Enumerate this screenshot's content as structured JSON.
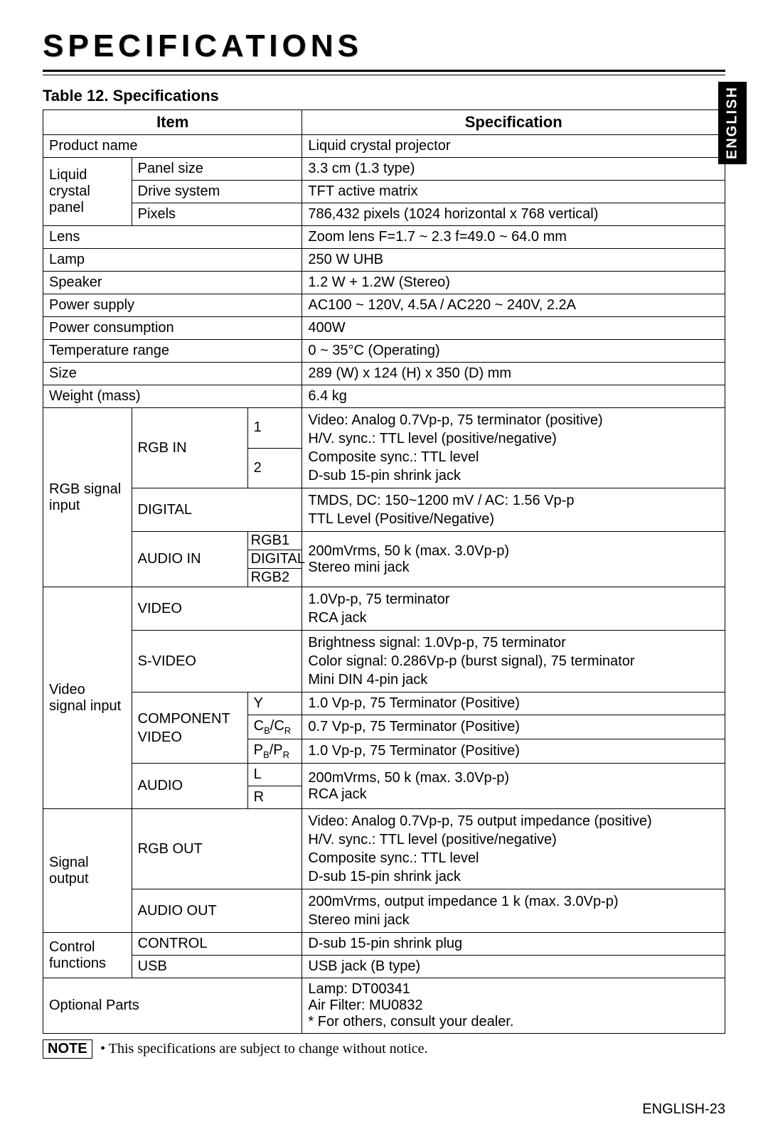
{
  "heading": "SPECIFICATIONS",
  "side_tab": "ENGLISH",
  "table_caption": "Table 12. Specifications",
  "header": {
    "item": "Item",
    "spec": "Specification"
  },
  "r": {
    "product_name": {
      "item": "Product name",
      "spec": "Liquid crystal projector"
    },
    "lcp": {
      "group": "Liquid crystal panel",
      "panel_size": {
        "item": "Panel size",
        "spec": "3.3 cm (1.3 type)"
      },
      "drive_system": {
        "item": "Drive system",
        "spec": "TFT active matrix"
      },
      "pixels": {
        "item": "Pixels",
        "spec": "786,432 pixels (1024 horizontal x 768 vertical)"
      }
    },
    "lens": {
      "item": "Lens",
      "spec": "Zoom lens F=1.7 ~ 2.3  f=49.0 ~ 64.0 mm"
    },
    "lamp": {
      "item": "Lamp",
      "spec": "250 W UHB"
    },
    "speaker": {
      "item": "Speaker",
      "spec": "1.2 W + 1.2W (Stereo)"
    },
    "power_supply": {
      "item": "Power supply",
      "spec": "AC100 ~ 120V, 4.5A / AC220 ~ 240V, 2.2A"
    },
    "power_cons": {
      "item": "Power consumption",
      "spec": "400W"
    },
    "temp": {
      "item": "Temperature range",
      "spec": "0 ~ 35°C (Operating)"
    },
    "size": {
      "item": "Size",
      "spec": "289 (W) x 124 (H) x 350 (D) mm"
    },
    "weight": {
      "item": "Weight (mass)",
      "spec": "6.4 kg"
    },
    "rgb": {
      "group": "RGB signal input",
      "rgb_in": {
        "label": "RGB IN",
        "r1": "1",
        "r2": "2",
        "spec": "Video: Analog 0.7Vp-p, 75   terminator (positive)\nH/V. sync.: TTL level (positive/negative)\nComposite sync.: TTL level\nD-sub 15-pin shrink jack"
      },
      "digital": {
        "label": "DIGITAL",
        "spec": "TMDS, DC: 150~1200 mV / AC: 1.56 Vp-p\nTTL Level (Positive/Negative)"
      },
      "audio_in": {
        "label": "AUDIO IN",
        "r1": "RGB1",
        "r2": "DIGITAL",
        "r3": "RGB2",
        "spec": "200mVrms, 50 k   (max. 3.0Vp-p)\nStereo mini jack"
      }
    },
    "video": {
      "group": "Video signal input",
      "vid": {
        "label": "VIDEO",
        "spec": "1.0Vp-p, 75   terminator\nRCA jack"
      },
      "svid": {
        "label": "S-VIDEO",
        "spec": "Brightness signal: 1.0Vp-p, 75   terminator\nColor signal: 0.286Vp-p (burst signal), 75   terminator\nMini DIN 4-pin jack"
      },
      "comp": {
        "label": "COMPONENT VIDEO",
        "y": {
          "k": "Y",
          "v": "1.0 Vp-p, 75     Terminator (Positive)"
        },
        "cbcr_k1": "C",
        "cbcr_k2": "B",
        "cbcr_k3": "/C",
        "cbcr_k4": "R",
        "cbcr_v": "0.7 Vp-p, 75     Terminator (Positive)",
        "pbpr_k1": "P",
        "pbpr_k2": "B",
        "pbpr_k3": "/P",
        "pbpr_k4": "R",
        "pbpr_v": "1.0 Vp-p, 75     Terminator (Positive)"
      },
      "audio": {
        "label": "AUDIO",
        "l": "L",
        "r": "R",
        "spec": "200mVrms, 50 k   (max. 3.0Vp-p)\nRCA jack"
      }
    },
    "sigout": {
      "group": "Signal output",
      "rgb_out": {
        "label": "RGB OUT",
        "spec": "Video: Analog 0.7Vp-p, 75   output impedance (positive)\nH/V. sync.: TTL level (positive/negative)\nComposite sync.: TTL level\nD-sub 15-pin shrink jack"
      },
      "audio_out": {
        "label": "AUDIO OUT",
        "spec": "200mVrms, output impedance 1 k   (max. 3.0Vp-p)\nStereo mini jack"
      }
    },
    "control": {
      "group": "Control functions",
      "ctrl": {
        "label": "CONTROL",
        "spec": "D-sub 15-pin shrink plug"
      },
      "usb": {
        "label": "USB",
        "spec": "USB jack (B type)"
      }
    },
    "optional": {
      "item": "Optional Parts",
      "spec": "Lamp: DT00341\nAir Filter: MU0832\n* For others, consult your dealer."
    }
  },
  "note": {
    "label": "NOTE",
    "text": "• This specifications are subject to change without notice."
  },
  "page_number": "ENGLISH-23",
  "colors": {
    "fg": "#000000",
    "bg": "#ffffff",
    "tab_bg": "#000000",
    "tab_fg": "#ffffff"
  }
}
